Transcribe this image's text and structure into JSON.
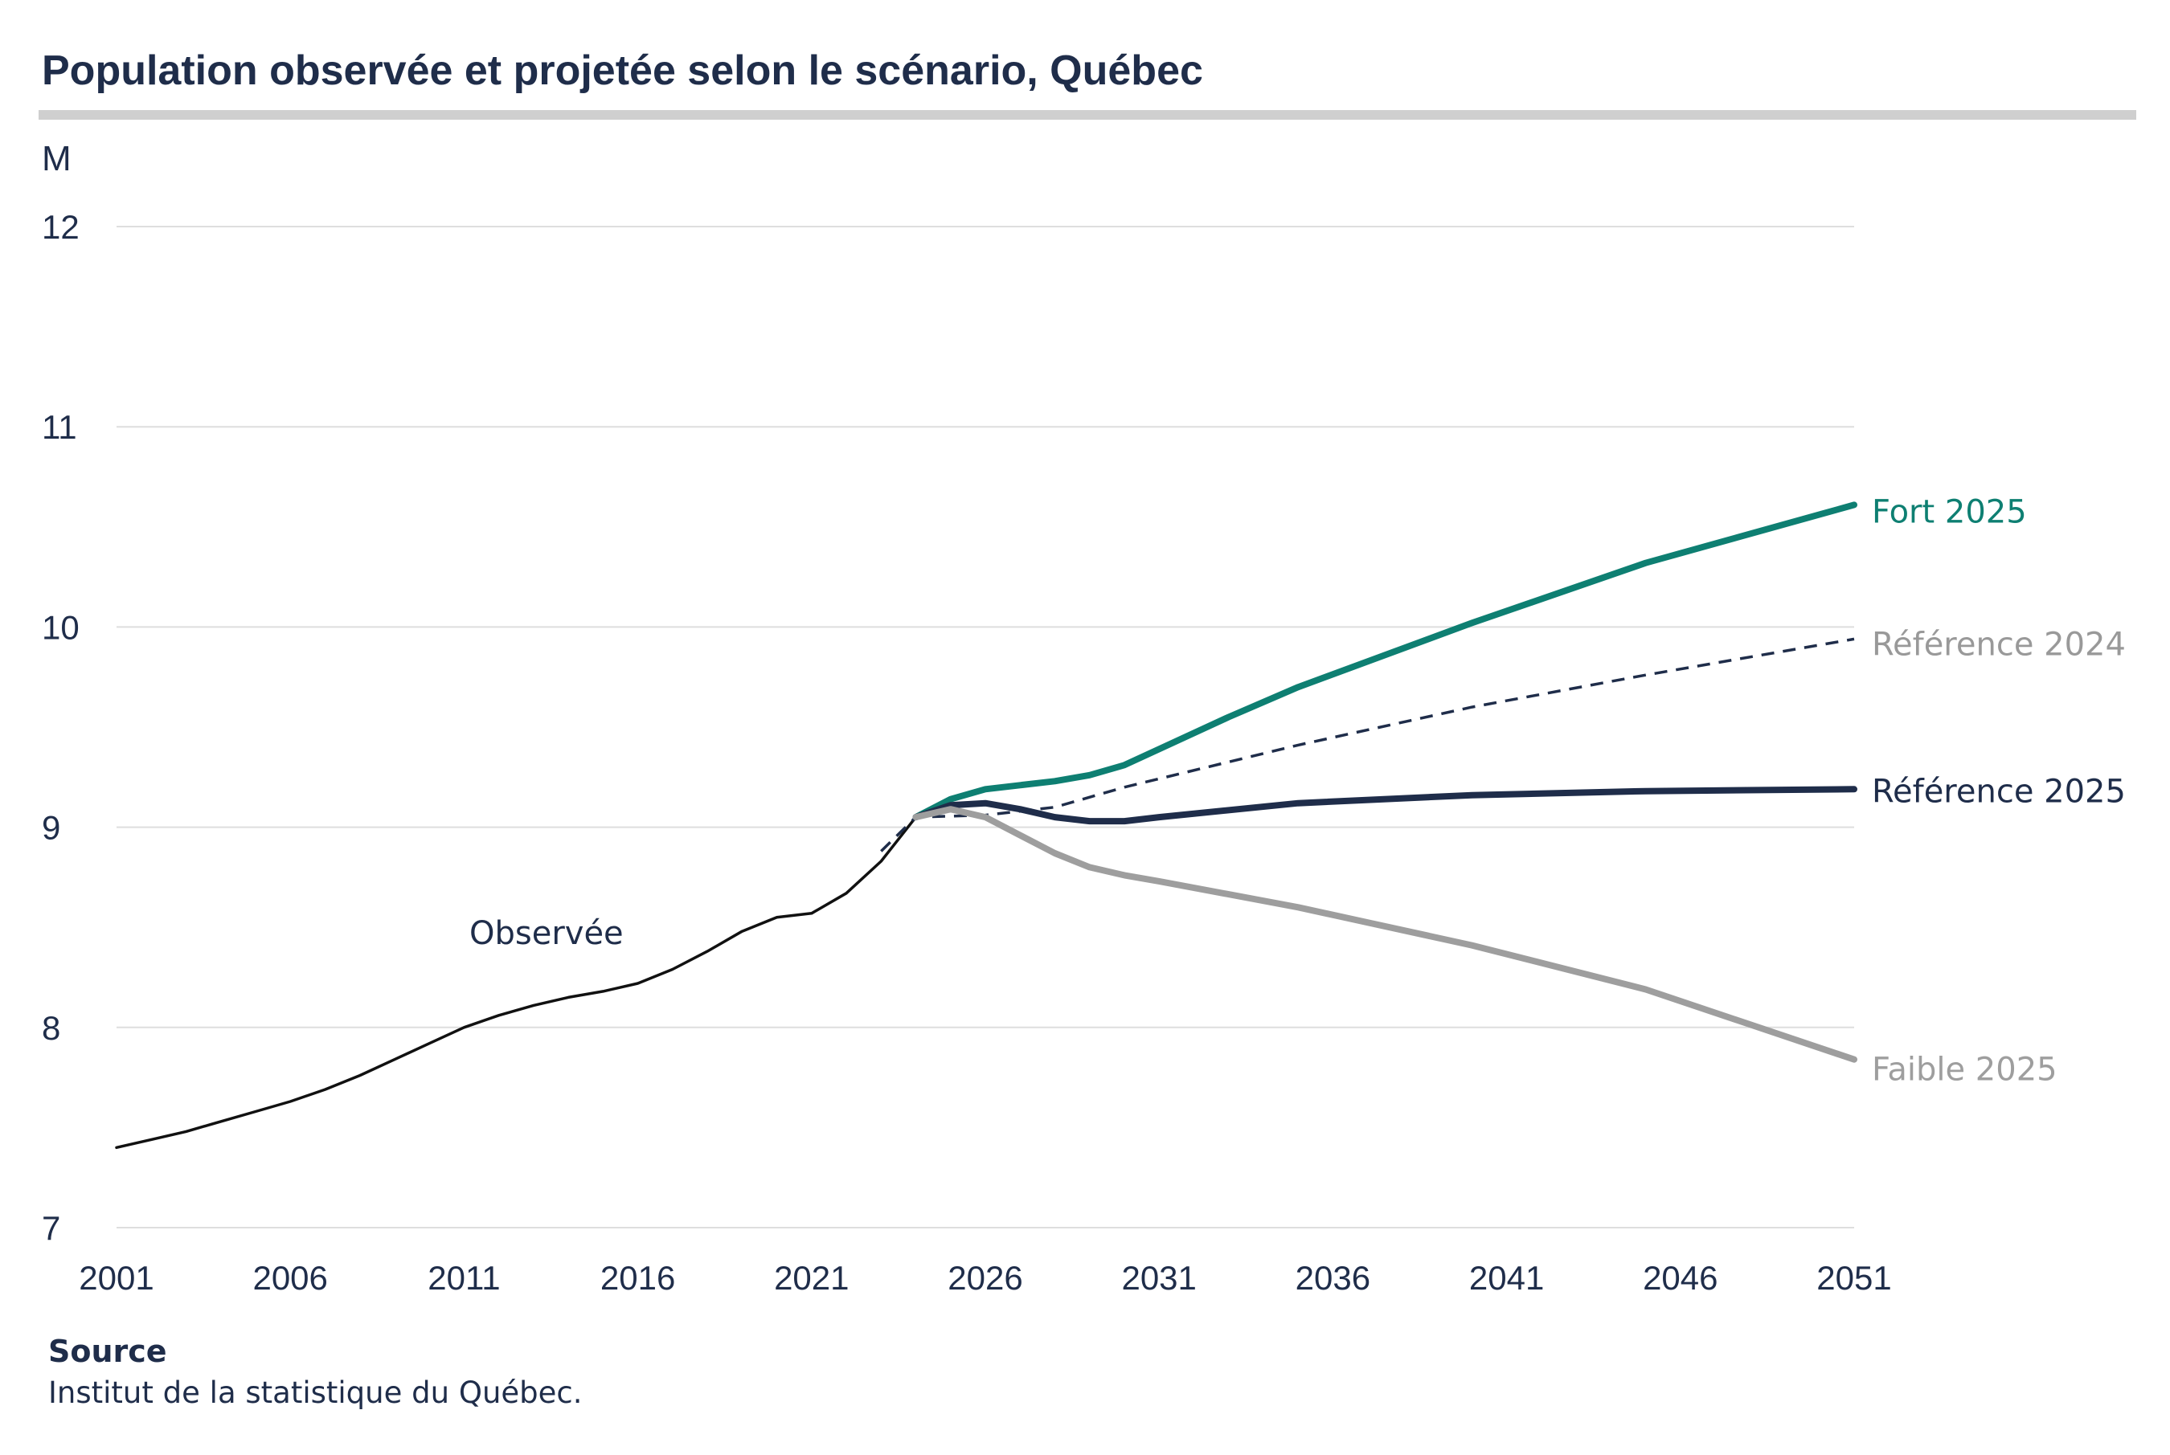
{
  "source": {
    "title": "Source",
    "text": "Institut de la statistique du Québec."
  },
  "chart_data": {
    "type": "line",
    "title": "Population observée et projetée selon le scénario, Québec",
    "xlabel": "",
    "ylabel": "M",
    "xlim": [
      2001,
      2051
    ],
    "ylim": [
      7,
      12
    ],
    "grid": true,
    "legend": "labels at line ends (right)",
    "x_ticks": [
      "2001",
      "2006",
      "2011",
      "2016",
      "2021",
      "2026",
      "2031",
      "2036",
      "2041",
      "2046",
      "2051"
    ],
    "y_ticks": [
      "7",
      "8",
      "9",
      "10",
      "11",
      "12"
    ],
    "series": [
      {
        "name": "Observée",
        "color": "#111111",
        "style": "solid",
        "label_position": "inline",
        "x": [
          2001,
          2002,
          2003,
          2004,
          2005,
          2006,
          2007,
          2008,
          2009,
          2010,
          2011,
          2012,
          2013,
          2014,
          2015,
          2016,
          2017,
          2018,
          2019,
          2020,
          2021,
          2022,
          2023,
          2023.5,
          2024
        ],
        "y": [
          7.4,
          7.44,
          7.48,
          7.53,
          7.58,
          7.63,
          7.69,
          7.76,
          7.84,
          7.92,
          8.0,
          8.06,
          8.11,
          8.15,
          8.18,
          8.22,
          8.29,
          8.38,
          8.48,
          8.55,
          8.57,
          8.67,
          8.83,
          8.94,
          9.05
        ]
      },
      {
        "name": "Référence 2024",
        "color": "#1f2d4a",
        "label_color": "#999999",
        "style": "dashed",
        "label_position": "end",
        "x": [
          2023,
          2024,
          2026,
          2028,
          2030,
          2035,
          2040,
          2045,
          2051
        ],
        "y": [
          8.88,
          9.05,
          9.06,
          9.1,
          9.2,
          9.41,
          9.6,
          9.76,
          9.94
        ]
      },
      {
        "name": "Fort 2025",
        "color": "#0e7f72",
        "style": "solid-thick",
        "label_position": "end",
        "x": [
          2024,
          2025,
          2026,
          2027,
          2028,
          2029,
          2030,
          2031,
          2033,
          2035,
          2040,
          2045,
          2051
        ],
        "y": [
          9.05,
          9.14,
          9.19,
          9.21,
          9.23,
          9.26,
          9.31,
          9.39,
          9.55,
          9.7,
          10.02,
          10.32,
          10.61
        ]
      },
      {
        "name": "Référence 2025",
        "color": "#1f2d4a",
        "style": "solid-thick",
        "label_position": "end",
        "x": [
          2024,
          2025,
          2026,
          2027,
          2028,
          2029,
          2030,
          2031,
          2035,
          2040,
          2045,
          2051
        ],
        "y": [
          9.05,
          9.11,
          9.12,
          9.09,
          9.05,
          9.03,
          9.03,
          9.05,
          9.12,
          9.16,
          9.18,
          9.19
        ]
      },
      {
        "name": "Faible 2025",
        "color": "#9e9e9e",
        "style": "solid-thick",
        "label_position": "end",
        "x": [
          2024,
          2025,
          2026,
          2027,
          2028,
          2029,
          2030,
          2031,
          2035,
          2040,
          2045,
          2051
        ],
        "y": [
          9.05,
          9.09,
          9.05,
          8.96,
          8.87,
          8.8,
          8.76,
          8.73,
          8.6,
          8.41,
          8.19,
          7.84
        ]
      }
    ]
  }
}
